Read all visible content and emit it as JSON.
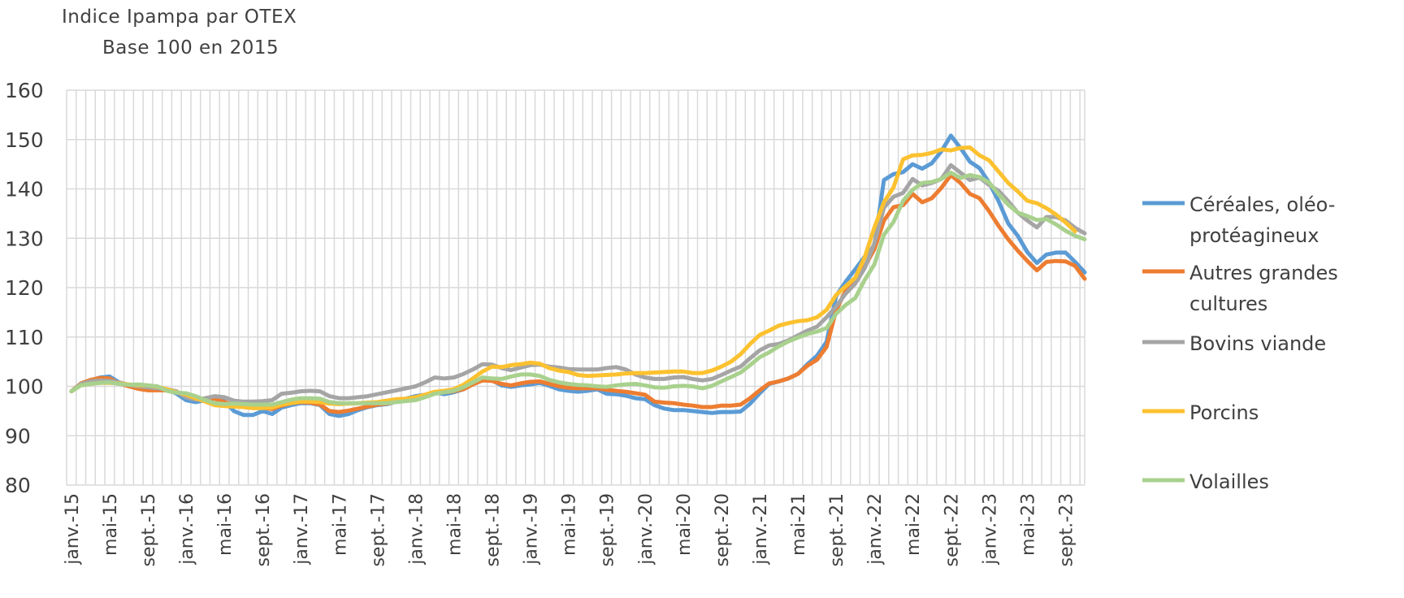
{
  "chart_data": {
    "type": "line",
    "ylabel_lines": [
      "Indice Ipampa par OTEX",
      "Base 100 en 2015"
    ],
    "ylim": [
      80,
      160
    ],
    "yticks": [
      80,
      90,
      100,
      110,
      120,
      130,
      140,
      150,
      160
    ],
    "grid": true,
    "legend_position": "right",
    "x_labels": [
      "janv.-15",
      "mai-15",
      "sept.-15",
      "janv.-16",
      "mai-16",
      "sept.-16",
      "janv.-17",
      "mai-17",
      "sept.-17",
      "janv.-18",
      "mai-18",
      "sept.-18",
      "janv.-19",
      "mai-19",
      "sept.-19",
      "janv.-20",
      "mai-20",
      "sept.-20",
      "janv.-21",
      "mai-21",
      "sept.-21",
      "janv.-22",
      "mai-22",
      "sept.-22",
      "janv.-23",
      "mai-23",
      "sept.-23"
    ],
    "series": [
      {
        "name": "Céréales, oléo-protéagineux",
        "legend_lines": [
          "Céréales, oléo-",
          "protéagineux"
        ],
        "color": "#5b9bd5",
        "values": [
          99,
          100.5,
          101.2,
          101.8,
          102,
          100.8,
          100.2,
          99.7,
          99.5,
          99.3,
          99.4,
          98.5,
          97.2,
          96.8,
          97.2,
          97.8,
          97,
          95,
          94.2,
          94.2,
          95,
          94.4,
          95.7,
          96.2,
          96.6,
          96.6,
          96.2,
          94.4,
          94,
          94.4,
          95.2,
          95.8,
          96.2,
          96.4,
          96.9,
          97.5,
          98,
          98.3,
          98.8,
          98.4,
          98.8,
          99.4,
          100.5,
          101.6,
          101.2,
          100.2,
          99.9,
          100.2,
          100.4,
          100.7,
          100.1,
          99.4,
          99.1,
          98.9,
          99.1,
          99.4,
          98.5,
          98.4,
          98.1,
          97.6,
          97.4,
          96.2,
          95.5,
          95.2,
          95.2,
          95,
          94.8,
          94.6,
          94.8,
          94.8,
          94.9,
          96.5,
          98.6,
          100.5,
          101,
          101.6,
          102.5,
          104.5,
          106.2,
          109,
          118.3,
          121.2,
          123.7,
          126.3,
          128.5,
          141.8,
          143,
          143.4,
          145,
          144.1,
          145.2,
          147.6,
          150.8,
          148.3,
          145.5,
          144.2,
          141.3,
          137.5,
          133,
          130.5,
          127.2,
          125,
          126.7,
          127.1,
          127.1,
          125.2,
          123.1
        ]
      },
      {
        "name": "Autres grandes cultures",
        "legend_lines": [
          "Autres grandes",
          "cultures"
        ],
        "color": "#ed7d31",
        "values": [
          99,
          100.6,
          101.3,
          101.7,
          101.6,
          100.6,
          100,
          99.5,
          99.2,
          99.2,
          99.2,
          98.8,
          98,
          97.5,
          97.4,
          97.5,
          96.8,
          96.3,
          95.8,
          95.6,
          95.7,
          95.4,
          96.1,
          96.6,
          96.8,
          96.7,
          96.3,
          95,
          94.8,
          95.1,
          95.5,
          95.9,
          96.3,
          96.5,
          96.9,
          97.3,
          97.8,
          98.2,
          98.6,
          98.8,
          99,
          99.4,
          100.4,
          101.2,
          101.1,
          100.5,
          100.2,
          100.6,
          100.9,
          101,
          100.5,
          100,
          99.7,
          99.6,
          99.6,
          99.6,
          99.3,
          99.1,
          98.9,
          98.6,
          98.3,
          96.9,
          96.7,
          96.6,
          96.3,
          96.1,
          95.8,
          95.8,
          96.1,
          96.1,
          96.3,
          97.6,
          99.2,
          100.6,
          101,
          101.6,
          102.5,
          104.2,
          105.4,
          108,
          115.4,
          119.4,
          121.5,
          124.3,
          127.8,
          133.6,
          136.3,
          136.7,
          139,
          137.3,
          138.1,
          140.2,
          142.8,
          141.2,
          139,
          138.1,
          135.5,
          132.5,
          129.8,
          127.5,
          125.4,
          123.5,
          125.2,
          125.4,
          125.3,
          124.4,
          121.8
        ]
      },
      {
        "name": "Bovins viande",
        "legend_lines": [
          "Bovins viande"
        ],
        "color": "#a5a5a5",
        "values": [
          99,
          100.5,
          101,
          101.2,
          101.1,
          100.8,
          100.3,
          100,
          99.8,
          99.6,
          99.4,
          99,
          97.8,
          97.3,
          97.6,
          98,
          97.8,
          97.1,
          96.9,
          96.9,
          97,
          97.2,
          98.5,
          98.7,
          99,
          99.1,
          99,
          98,
          97.6,
          97.6,
          97.8,
          98,
          98.4,
          98.8,
          99.2,
          99.6,
          100,
          100.8,
          101.8,
          101.6,
          101.8,
          102.5,
          103.4,
          104.5,
          104.4,
          103.7,
          103.3,
          103.8,
          104.3,
          104.4,
          104,
          103.8,
          103.5,
          103.4,
          103.4,
          103.4,
          103.7,
          103.9,
          103.4,
          102.4,
          101.8,
          101.5,
          101.5,
          101.8,
          101.9,
          101.5,
          101.2,
          101.5,
          102.3,
          103.2,
          104,
          105.7,
          107.3,
          108.3,
          108.6,
          109.3,
          110.3,
          111.3,
          112.1,
          114,
          116.2,
          118.8,
          120.8,
          124,
          129,
          136.2,
          138.4,
          139.2,
          142,
          140.7,
          141.2,
          142,
          144.8,
          143.3,
          141.8,
          142.3,
          140.8,
          139.6,
          137.5,
          135.2,
          133.6,
          132.2,
          134.3,
          134.3,
          133.6,
          132.1,
          131
        ]
      },
      {
        "name": "Porcins",
        "legend_lines": [
          "Porcins"
        ],
        "color": "#fcc12f",
        "values": [
          99,
          100.2,
          100.5,
          100.7,
          100.7,
          100.6,
          100.4,
          100.2,
          100.2,
          99.9,
          99.4,
          98.8,
          98.3,
          97.6,
          96.9,
          96.2,
          96,
          95.9,
          95.8,
          95.6,
          95.6,
          95.7,
          96.3,
          96.6,
          96.9,
          96.9,
          96.8,
          96.5,
          96.4,
          96.5,
          96.6,
          96.7,
          96.8,
          97.1,
          97.4,
          97.5,
          97.8,
          98.3,
          98.9,
          99.1,
          99.4,
          100.3,
          101.6,
          103,
          104,
          103.9,
          104.3,
          104.5,
          104.8,
          104.6,
          103.7,
          103.2,
          102.9,
          102.3,
          102.1,
          102.2,
          102.3,
          102.4,
          102.6,
          102.7,
          102.7,
          102.8,
          102.9,
          103,
          103,
          102.7,
          102.7,
          103.2,
          104,
          105,
          106.5,
          108.6,
          110.4,
          111.3,
          112.3,
          112.8,
          113.2,
          113.4,
          114,
          115.5,
          118.5,
          120.3,
          122,
          126.2,
          132.2,
          137.3,
          140.3,
          146,
          146.8,
          146.9,
          147.3,
          148,
          147.8,
          148.3,
          148.4,
          146.8,
          145.8,
          143.5,
          141.2,
          139.5,
          137.6,
          137.1,
          136.1,
          134.8,
          133.2,
          131.4
        ]
      },
      {
        "name": "Volailles",
        "legend_lines": [
          "Volailles"
        ],
        "color": "#a9d18e",
        "values": [
          99,
          100.2,
          100.5,
          100.7,
          100.8,
          100.5,
          100.3,
          100.4,
          100.2,
          100,
          99.1,
          98.7,
          98.6,
          98,
          97.2,
          96.6,
          96.4,
          96.5,
          96.4,
          96.3,
          96.3,
          96.3,
          96.8,
          97.3,
          97.6,
          97.6,
          97.5,
          96.8,
          96.6,
          96.6,
          96.6,
          96.6,
          96.6,
          96.6,
          96.8,
          97,
          97.2,
          97.8,
          98.5,
          98.8,
          99.1,
          99.8,
          100.8,
          101.8,
          101.6,
          101.5,
          102,
          102.4,
          102.4,
          102.1,
          101.3,
          100.8,
          100.5,
          100.3,
          100.2,
          100,
          99.9,
          100.2,
          100.4,
          100.5,
          100.2,
          99.8,
          99.7,
          100,
          100.1,
          100,
          99.6,
          100.1,
          101,
          101.9,
          102.8,
          104.3,
          105.9,
          106.9,
          108.1,
          109.1,
          109.9,
          110.6,
          111.1,
          111.8,
          114.7,
          116.5,
          117.9,
          121.6,
          124.7,
          130.7,
          133.3,
          137.6,
          139.8,
          141.2,
          141.4,
          142,
          143.3,
          142.2,
          142.8,
          142.4,
          141.3,
          138.9,
          136.8,
          135.2,
          134.5,
          133.7,
          133.9,
          132.8,
          131.5,
          130.5,
          129.8
        ]
      }
    ]
  }
}
